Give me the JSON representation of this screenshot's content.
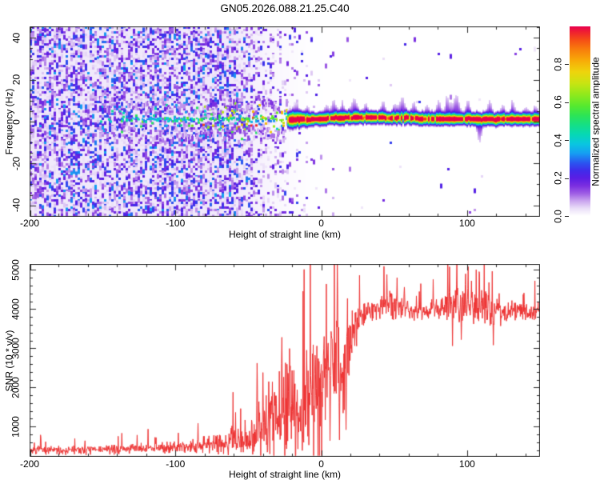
{
  "title": "GN05.2026.088.21.25.C40",
  "colors": {
    "axis": "#2a2a2a",
    "snr_line": "#ee3333",
    "background": "#ffffff",
    "noise_wash_rgb": [
      232,
      219,
      248
    ],
    "colormap_stops": [
      [
        0.0,
        "#ffffff"
      ],
      [
        0.04,
        "#eadef8"
      ],
      [
        0.08,
        "#c9a4ee"
      ],
      [
        0.12,
        "#9d5ce4"
      ],
      [
        0.16,
        "#7a2ee0"
      ],
      [
        0.2,
        "#5a1ee4"
      ],
      [
        0.24,
        "#3f2cea"
      ],
      [
        0.28,
        "#2a55f0"
      ],
      [
        0.33,
        "#169df2"
      ],
      [
        0.38,
        "#09c6e0"
      ],
      [
        0.43,
        "#06d8b4"
      ],
      [
        0.48,
        "#15df85"
      ],
      [
        0.53,
        "#2ce455"
      ],
      [
        0.58,
        "#55e92f"
      ],
      [
        0.64,
        "#8fe91c"
      ],
      [
        0.7,
        "#c8e412"
      ],
      [
        0.76,
        "#eed40c"
      ],
      [
        0.82,
        "#f8ab08"
      ],
      [
        0.88,
        "#f87c0c"
      ],
      [
        0.93,
        "#f54c16"
      ],
      [
        0.97,
        "#ef2030"
      ],
      [
        1.0,
        "#e8004e"
      ]
    ]
  },
  "chart_data": [
    {
      "id": "spectrogram",
      "type": "heatmap",
      "xlabel": "Height of straight line (km)",
      "ylabel": "Frequency (Hz)",
      "xlim": [
        -200,
        150
      ],
      "ylim": [
        -45.5,
        45.5
      ],
      "x_ticks": {
        "major": [
          -200,
          -100,
          0,
          100
        ],
        "labels": [
          "-200",
          "-100",
          "0",
          "100"
        ],
        "minor_step": 20
      },
      "y_ticks": {
        "major": [
          -40,
          -20,
          0,
          20,
          40
        ],
        "labels": [
          "-40",
          "-20",
          "0",
          "20",
          "40"
        ],
        "minor_step": 5
      },
      "colorbar": {
        "label": "Normalized spectral amplitude",
        "range": [
          0,
          1
        ],
        "tick_values": [
          0,
          0.2,
          0.4,
          0.6,
          0.8
        ],
        "tick_labels": [
          "0.0",
          "0.2",
          "0.4",
          "0.6",
          "0.8"
        ]
      },
      "seed": 91,
      "noise": {
        "full_until_km": -65,
        "fade_mid_km": -28,
        "fade_end_km": 8
      },
      "band": {
        "center_hz": 1.3,
        "dots_start_km": -152,
        "line_start_km": -24,
        "core_width_hz": 1.9,
        "flares": [
          [
            -18,
            2.5,
            5
          ],
          [
            -10,
            2,
            4
          ],
          [
            3,
            2,
            4
          ],
          [
            8,
            2,
            6
          ],
          [
            14,
            2,
            4
          ],
          [
            22,
            3,
            6
          ],
          [
            30,
            2,
            4
          ],
          [
            42,
            2,
            5
          ],
          [
            50,
            2,
            4
          ],
          [
            55,
            2.5,
            7
          ],
          [
            63,
            2,
            5
          ],
          [
            72,
            2,
            4
          ],
          [
            80,
            2,
            6
          ],
          [
            86,
            2,
            7
          ],
          [
            92,
            3,
            8
          ],
          [
            100,
            2,
            6
          ],
          [
            108,
            2,
            -8
          ],
          [
            115,
            2,
            6
          ],
          [
            124,
            2,
            4
          ],
          [
            131,
            2,
            5
          ],
          [
            140,
            2,
            3
          ],
          [
            146,
            1.5,
            4
          ]
        ]
      }
    },
    {
      "id": "snr",
      "type": "line",
      "xlabel": "Height of straight line (km)",
      "ylabel": "SNR (10 * v/v)",
      "xlim": [
        -200,
        150
      ],
      "ylim": [
        230,
        5150
      ],
      "x_ticks": {
        "major": [
          -200,
          -100,
          0,
          100
        ],
        "labels": [
          "-200",
          "-100",
          "0",
          "100"
        ],
        "minor_step": 20
      },
      "y_ticks": {
        "major": [
          1000,
          2000,
          3000,
          4000,
          5000
        ],
        "labels": [
          "1000",
          "2000",
          "3000",
          "4000",
          "5000"
        ],
        "minor_step": 200
      },
      "seed": 7,
      "envelope": [
        [
          -200,
          390,
          150
        ],
        [
          -170,
          400,
          155
        ],
        [
          -140,
          420,
          165
        ],
        [
          -115,
          450,
          195
        ],
        [
          -95,
          500,
          260
        ],
        [
          -80,
          540,
          310
        ],
        [
          -68,
          590,
          400
        ],
        [
          -58,
          690,
          540
        ],
        [
          -50,
          790,
          720
        ],
        [
          -44,
          900,
          950
        ],
        [
          -38,
          1020,
          1150
        ],
        [
          -32,
          1220,
          1400
        ],
        [
          -27,
          1500,
          1600
        ],
        [
          -22,
          1700,
          1750
        ],
        [
          -17,
          1450,
          1500
        ],
        [
          -13,
          1150,
          1250
        ],
        [
          -9,
          1900,
          1700
        ],
        [
          -4,
          2150,
          1650
        ],
        [
          0,
          2000,
          1700
        ],
        [
          4,
          2400,
          1500
        ],
        [
          8,
          2750,
          1450
        ],
        [
          12,
          2550,
          1900
        ],
        [
          15,
          2150,
          1500
        ],
        [
          18,
          2850,
          1150
        ],
        [
          22,
          3400,
          820
        ],
        [
          27,
          3750,
          520
        ],
        [
          32,
          3980,
          380
        ],
        [
          40,
          4050,
          360
        ],
        [
          48,
          4120,
          520
        ],
        [
          55,
          4080,
          460
        ],
        [
          62,
          3940,
          310
        ],
        [
          70,
          3940,
          290
        ],
        [
          78,
          4000,
          360
        ],
        [
          85,
          4080,
          620
        ],
        [
          92,
          4150,
          760
        ],
        [
          100,
          4080,
          660
        ],
        [
          107,
          3990,
          510
        ],
        [
          113,
          4040,
          560
        ],
        [
          118,
          3900,
          620
        ],
        [
          125,
          3950,
          420
        ],
        [
          135,
          3950,
          310
        ],
        [
          143,
          3900,
          290
        ],
        [
          150,
          3950,
          310
        ]
      ],
      "spikes": [
        [
          -44,
          2620
        ],
        [
          -40,
          2380
        ],
        [
          -36,
          2150
        ],
        [
          -27,
          3280
        ],
        [
          -16,
          430
        ],
        [
          -13,
          390
        ],
        [
          -10,
          2950
        ],
        [
          2,
          3300
        ],
        [
          6,
          640
        ],
        [
          11,
          5200
        ],
        [
          12.5,
          660
        ],
        [
          14,
          2250
        ],
        [
          17,
          920
        ],
        [
          45,
          4880
        ],
        [
          52,
          4800
        ],
        [
          57,
          4560
        ],
        [
          88,
          5080
        ],
        [
          90,
          3060
        ],
        [
          93,
          5150
        ],
        [
          96,
          3220
        ],
        [
          99,
          4900
        ],
        [
          103,
          4720
        ],
        [
          110,
          4480
        ],
        [
          115,
          4680
        ],
        [
          118,
          3080
        ],
        [
          122,
          4400
        ]
      ]
    }
  ]
}
